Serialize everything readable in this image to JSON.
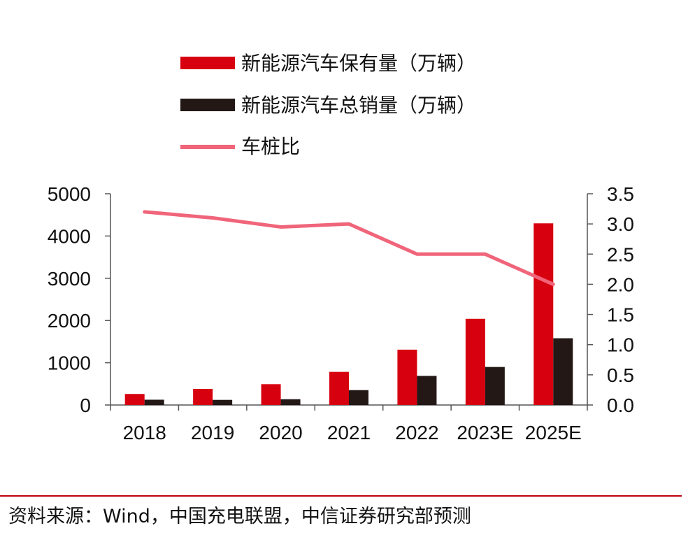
{
  "chart_data": {
    "type": "bar",
    "categories": [
      "2018",
      "2019",
      "2020",
      "2021",
      "2022",
      "2023E",
      "2025E"
    ],
    "series": [
      {
        "name": "新能源汽车保有量（万辆）",
        "kind": "bar",
        "color": "#d7000f",
        "values": [
          261,
          381,
          492,
          784,
          1310,
          2040,
          4300
        ]
      },
      {
        "name": "新能源汽车总销量（万辆）",
        "kind": "bar",
        "color": "#231816",
        "values": [
          125,
          121,
          137,
          352,
          689,
          900,
          1580
        ]
      },
      {
        "name": "车桩比",
        "kind": "line",
        "axis": "right",
        "color": "#f0657a",
        "values": [
          3.2,
          3.1,
          2.95,
          3.0,
          2.5,
          2.5,
          2.0
        ]
      }
    ],
    "y_left": {
      "lim": [
        0,
        5000
      ],
      "ticks": [
        "0",
        "1000",
        "2000",
        "3000",
        "4000",
        "5000"
      ]
    },
    "y_right": {
      "lim": [
        0,
        3.5
      ],
      "ticks": [
        "0.0",
        "0.5",
        "1.0",
        "1.5",
        "2.0",
        "2.5",
        "3.0",
        "3.5"
      ]
    },
    "legend": [
      "新能源汽车保有量（万辆）",
      "新能源汽车总销量（万辆）",
      "车桩比"
    ]
  },
  "source_text": "资料来源：Wind，中国充电联盟，中信证券研究部预测"
}
